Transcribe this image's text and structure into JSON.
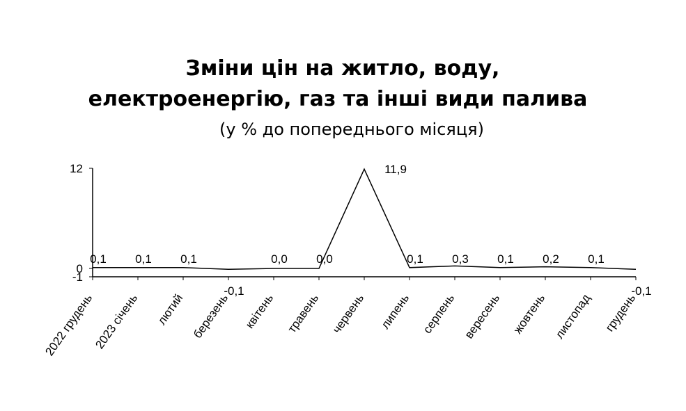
{
  "chart_data": {
    "type": "line",
    "title": [
      "Зміни цін на житло, воду,",
      "електроенергію, газ та інші види палива"
    ],
    "subtitle": "(у % до попереднього місяця)",
    "categories": [
      "2022 грудень",
      "2023 січень",
      "лютий",
      "березень",
      "квітень",
      "травень",
      "червень",
      "липень",
      "серпень",
      "вересень",
      "жовтень",
      "листопад",
      "грудень"
    ],
    "series": [
      {
        "name": "Зміни цін",
        "color": "#000000",
        "values": [
          0.1,
          0.1,
          0.1,
          -0.1,
          0.0,
          0.0,
          11.9,
          0.1,
          0.3,
          0.1,
          0.2,
          0.1,
          -0.1
        ],
        "value_labels": [
          "0,1",
          "0,1",
          "0,1",
          "-0,1",
          "0,0",
          "0,0",
          "11,9",
          "0,1",
          "0,3",
          "0,1",
          "0,2",
          "0,1",
          "-0,1"
        ]
      }
    ],
    "ylim": [
      -1,
      12
    ],
    "yticks": [
      -1,
      0,
      12
    ],
    "grid": false
  }
}
